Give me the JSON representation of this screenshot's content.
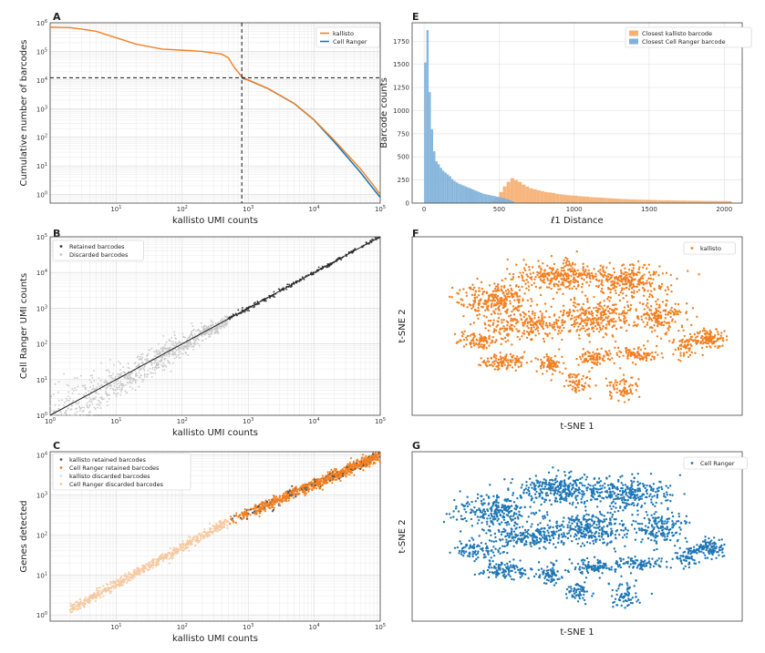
{
  "figure": {
    "panels": [
      "A",
      "B",
      "C",
      "E",
      "F",
      "G"
    ]
  },
  "chart_data": [
    {
      "id": "A",
      "type": "line",
      "xlabel": "kallisto UMI counts",
      "ylabel": "Cumulative number of barcodes",
      "xscale": "log",
      "yscale": "log",
      "xlim": [
        1,
        100000
      ],
      "ylim": [
        0.5,
        1000000
      ],
      "xticks": [
        "10^1",
        "10^2",
        "10^3",
        "10^4",
        "10^5"
      ],
      "yticks": [
        "10^0",
        "10^1",
        "10^2",
        "10^3",
        "10^4",
        "10^5",
        "10^6"
      ],
      "grid": true,
      "legend_position": "top-right",
      "series": [
        {
          "name": "kallisto",
          "color": "#f28022",
          "x": [
            1,
            2,
            3,
            5,
            10,
            20,
            50,
            100,
            200,
            400,
            500,
            600,
            800,
            1000,
            2000,
            5000,
            10000,
            20000,
            50000,
            80000,
            100000
          ],
          "y": [
            700000,
            680000,
            600000,
            500000,
            300000,
            180000,
            120000,
            110000,
            100000,
            80000,
            60000,
            30000,
            13000,
            10000,
            5000,
            1500,
            400,
            80,
            8,
            2,
            1
          ]
        },
        {
          "name": "Cell Ranger",
          "color": "#1f77b4",
          "x": [
            800,
            1000,
            2000,
            5000,
            10000,
            20000,
            50000,
            80000,
            100000
          ],
          "y": [
            12000,
            10000,
            5000,
            1500,
            400,
            70,
            6,
            1.5,
            0.8
          ]
        }
      ],
      "reference_lines": {
        "vline_x": 800,
        "hline_y": 12000
      }
    },
    {
      "id": "B",
      "type": "scatter",
      "xlabel": "kallisto UMI counts",
      "ylabel": "Cell Ranger UMI counts",
      "xscale": "log",
      "yscale": "log",
      "xlim": [
        1,
        100000
      ],
      "ylim": [
        1,
        100000
      ],
      "xticks": [
        "10^0",
        "10^1",
        "10^2",
        "10^3",
        "10^4",
        "10^5"
      ],
      "yticks": [
        "10^0",
        "10^1",
        "10^2",
        "10^3",
        "10^4",
        "10^5"
      ],
      "grid": true,
      "legend_position": "top-left",
      "series": [
        {
          "name": "Retained barcodes",
          "color": "#333333",
          "x_range": [
            500,
            100000
          ]
        },
        {
          "name": "Discarded barcodes",
          "color": "#c8c8c8",
          "x_range": [
            1,
            500
          ]
        }
      ]
    },
    {
      "id": "C",
      "type": "scatter",
      "xlabel": "kallisto UMI counts",
      "ylabel": "Genes detected",
      "xscale": "log",
      "yscale": "log",
      "xlim": [
        1,
        100000
      ],
      "ylim": [
        0.7,
        12000
      ],
      "xticks": [
        "10^1",
        "10^2",
        "10^3",
        "10^4",
        "10^5"
      ],
      "yticks": [
        "10^0",
        "10^1",
        "10^2",
        "10^3",
        "10^4"
      ],
      "grid": true,
      "legend_position": "top-left",
      "series": [
        {
          "name": "kallisto retained barcodes",
          "color": "#555555"
        },
        {
          "name": "Cell Ranger retained barcodes",
          "color": "#f28022"
        },
        {
          "name": "kallisto discarded barcodes",
          "color": "#e0e0e0"
        },
        {
          "name": "Cell Ranger discarded barcodes",
          "color": "#f6c9a0"
        }
      ]
    },
    {
      "id": "E",
      "type": "bar",
      "xlabel": "ℓ1 Distance",
      "ylabel": "Barcode counts",
      "xlim": [
        -80,
        2120
      ],
      "ylim": [
        0,
        1950
      ],
      "xticks": [
        0,
        500,
        1000,
        1500,
        2000
      ],
      "yticks": [
        0,
        250,
        500,
        750,
        1000,
        1250,
        1500,
        1750
      ],
      "grid": true,
      "legend_position": "top-right",
      "bin_width": 25,
      "series": [
        {
          "name": "Closest kallisto barcode",
          "color": "#f6b073",
          "bin_starts": [
            450,
            475,
            500,
            525,
            550,
            575,
            600,
            625,
            650,
            675,
            700,
            725,
            750,
            775,
            800,
            825,
            850,
            875,
            900,
            925,
            950,
            975,
            1000,
            1025,
            1050,
            1075,
            1100,
            1125,
            1150,
            1175,
            1200,
            1225,
            1250,
            1275,
            1300,
            1325,
            1350,
            1375,
            1400,
            1425,
            1450,
            1475,
            1500,
            1525,
            1550,
            1575,
            1600,
            1625,
            1650,
            1675,
            1700,
            1725,
            1750,
            1775,
            1800,
            1825,
            1850,
            1875,
            1900,
            1925,
            1950,
            1975,
            2000,
            2025
          ],
          "counts": [
            30,
            60,
            120,
            180,
            230,
            270,
            250,
            230,
            200,
            180,
            160,
            150,
            140,
            130,
            120,
            115,
            110,
            100,
            95,
            90,
            85,
            82,
            80,
            75,
            72,
            70,
            65,
            62,
            60,
            58,
            55,
            52,
            50,
            48,
            45,
            44,
            42,
            40,
            38,
            37,
            36,
            35,
            34,
            33,
            32,
            31,
            30,
            30,
            29,
            28,
            27,
            27,
            26,
            26,
            25,
            25,
            24,
            24,
            23,
            23,
            22,
            22,
            22,
            21
          ]
        },
        {
          "name": "Closest Cell Ranger barcode",
          "color": "#7fb1d9",
          "bin_starts": [
            0,
            15,
            30,
            45,
            60,
            75,
            90,
            105,
            120,
            135,
            150,
            165,
            180,
            195,
            210,
            225,
            240,
            255,
            270,
            285,
            300,
            315,
            330,
            345,
            360,
            375,
            390,
            405,
            420,
            435,
            450,
            465,
            480,
            495,
            510,
            525,
            540,
            555,
            570,
            585
          ],
          "counts": [
            1520,
            1870,
            1200,
            800,
            560,
            450,
            420,
            380,
            350,
            330,
            310,
            290,
            260,
            240,
            225,
            210,
            200,
            190,
            180,
            170,
            160,
            150,
            140,
            130,
            120,
            110,
            100,
            95,
            90,
            85,
            80,
            75,
            70,
            65,
            60,
            55,
            45,
            40,
            30,
            20
          ]
        }
      ]
    },
    {
      "id": "F",
      "type": "scatter",
      "xlabel": "t-SNE 1",
      "ylabel": "t-SNE 2",
      "legend_position": "top-right",
      "series": [
        {
          "name": "kallisto",
          "color": "#f28022"
        }
      ]
    },
    {
      "id": "G",
      "type": "scatter",
      "xlabel": "t-SNE 1",
      "ylabel": "t-SNE 2",
      "legend_position": "top-right",
      "series": [
        {
          "name": "Cell Ranger",
          "color": "#1f77b4"
        }
      ]
    }
  ]
}
